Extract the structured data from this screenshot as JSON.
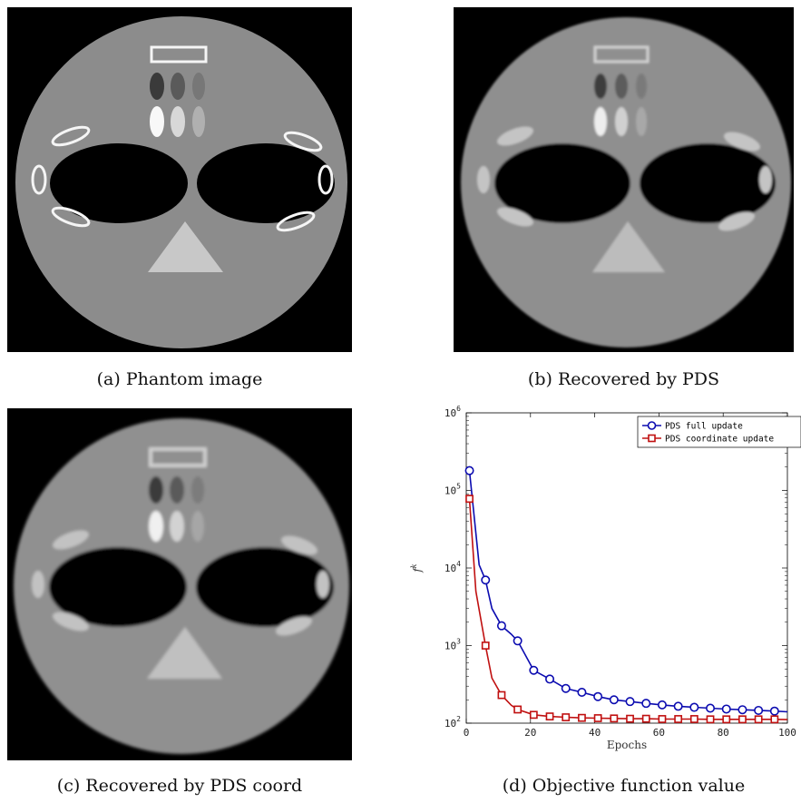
{
  "figure": {
    "captions": {
      "a": "(a) Phantom image",
      "b": "(b) Recovered by PDS",
      "c": "(c) Recovered by PDS coord",
      "d": "(d) Objective function value"
    }
  },
  "chart_data": {
    "type": "line",
    "xlabel": "Epochs",
    "ylabel": "f^k",
    "xlim": [
      0,
      100
    ],
    "ylim": [
      100,
      1000000
    ],
    "yscale": "log",
    "grid": false,
    "legend_position": "top-right",
    "xticks": [
      0,
      20,
      40,
      60,
      80,
      100
    ],
    "yticks": [
      100,
      1000,
      10000,
      100000,
      1000000
    ],
    "ytick_labels": [
      {
        "base": "10",
        "exp": "2"
      },
      {
        "base": "10",
        "exp": "3"
      },
      {
        "base": "10",
        "exp": "4"
      },
      {
        "base": "10",
        "exp": "5"
      },
      {
        "base": "10",
        "exp": "6"
      }
    ],
    "series": [
      {
        "name": "PDS full update",
        "color": "#0b0bb0",
        "marker": "circle",
        "x": [
          1,
          4,
          6,
          8,
          11,
          14,
          16,
          21,
          26,
          31,
          36,
          41,
          46,
          51,
          56,
          61,
          66,
          71,
          76,
          81,
          86,
          91,
          96,
          100
        ],
        "y": [
          180000,
          11000,
          7000,
          3000,
          1800,
          1400,
          1150,
          480,
          370,
          280,
          250,
          220,
          200,
          190,
          180,
          172,
          165,
          160,
          156,
          152,
          149,
          146,
          143,
          140
        ],
        "marker_x": [
          1,
          6,
          11,
          16,
          21,
          26,
          31,
          36,
          41,
          46,
          51,
          56,
          61,
          66,
          71,
          76,
          81,
          86,
          91,
          96
        ]
      },
      {
        "name": "PDS coordinate update",
        "color": "#c01010",
        "marker": "square",
        "x": [
          1,
          3,
          6,
          8,
          11,
          14,
          16,
          21,
          26,
          31,
          36,
          41,
          46,
          51,
          56,
          61,
          66,
          71,
          76,
          81,
          86,
          91,
          96,
          100
        ],
        "y": [
          78000,
          5000,
          1000,
          380,
          230,
          170,
          150,
          128,
          122,
          119,
          117,
          116,
          115,
          114,
          114,
          113,
          113,
          113,
          112,
          112,
          112,
          112,
          112,
          111
        ],
        "marker_x": [
          1,
          6,
          11,
          16,
          21,
          26,
          31,
          36,
          41,
          46,
          51,
          56,
          61,
          66,
          71,
          76,
          81,
          86,
          91,
          96
        ]
      }
    ]
  }
}
